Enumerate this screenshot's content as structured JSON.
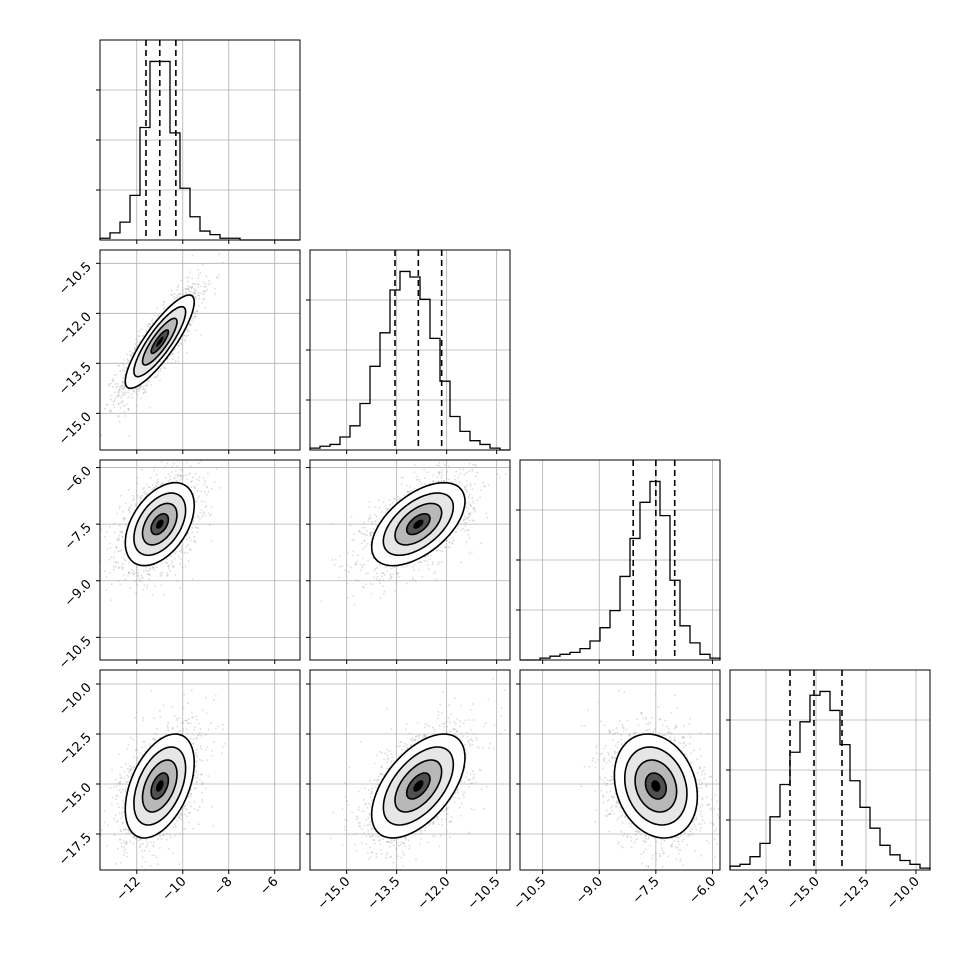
{
  "chart_data": {
    "type": "corner",
    "parameters": [
      {
        "ticks": [
          "−12",
          "−10",
          "−8",
          "−6"
        ],
        "tick_values": [
          -12,
          -10,
          -8,
          -6
        ],
        "range": [
          -13.6,
          -4.9
        ],
        "quantiles": [
          -11.6,
          -11.0,
          -10.3
        ],
        "hist": [
          1,
          4,
          10,
          25,
          63,
          100,
          100,
          60,
          29,
          13,
          5,
          3,
          1,
          1,
          0,
          0,
          0,
          0,
          0,
          0
        ],
        "center": -11.0,
        "sigma": 0.75
      },
      {
        "ticks": [
          "−15.0",
          "−13.5",
          "−12.0",
          "−10.5"
        ],
        "tick_values": [
          -15.0,
          -13.5,
          -12.0,
          -10.5
        ],
        "range": [
          -16.1,
          -10.1
        ],
        "quantiles": [
          -13.55,
          -12.85,
          -12.15
        ],
        "hist": [
          1,
          2,
          3,
          7,
          13,
          25,
          45,
          63,
          86,
          96,
          93,
          81,
          60,
          37,
          18,
          10,
          5,
          3,
          1,
          0
        ],
        "center": -12.85,
        "sigma": 0.7
      },
      {
        "ticks": [
          "−10.5",
          "−9.0",
          "−7.5",
          "−6.0"
        ],
        "tick_values": [
          -10.5,
          -9.0,
          -7.5,
          -6.0
        ],
        "range": [
          -11.1,
          -5.8
        ],
        "quantiles": [
          -8.1,
          -7.5,
          -7.0
        ],
        "hist": [
          0,
          0,
          1,
          2,
          3,
          4,
          6,
          10,
          17,
          26,
          44,
          64,
          83,
          94,
          76,
          42,
          18,
          9,
          3,
          1
        ],
        "center": -7.5,
        "sigma": 0.55
      },
      {
        "ticks": [
          "−17.5",
          "−15.0",
          "−12.5",
          "−10.0"
        ],
        "tick_values": [
          -17.5,
          -15.0,
          -12.5,
          -10.0
        ],
        "range": [
          -19.3,
          -9.3
        ],
        "quantiles": [
          -16.3,
          -15.1,
          -13.7
        ],
        "hist": [
          2,
          3,
          7,
          14,
          28,
          45,
          62,
          78,
          92,
          94,
          84,
          66,
          47,
          33,
          22,
          13,
          8,
          5,
          3,
          1
        ],
        "center": -15.1,
        "sigma": 1.3
      }
    ],
    "correlations": [
      [
        1,
        0.85,
        0.45,
        0.45
      ],
      [
        0.85,
        1,
        0.55,
        0.55
      ],
      [
        0.45,
        0.55,
        1,
        -0.2
      ],
      [
        0.45,
        0.55,
        -0.2,
        1
      ]
    ],
    "grid": true,
    "contour_levels": [
      "0.5σ",
      "1σ",
      "1.5σ",
      "2σ"
    ],
    "colors": {
      "line": "#000000",
      "points": "#9a9a9a",
      "grid": "#b0b0b0"
    }
  }
}
